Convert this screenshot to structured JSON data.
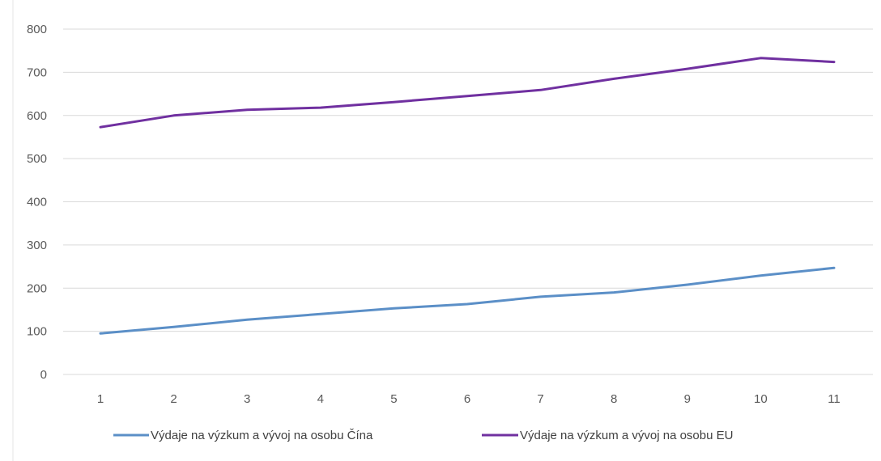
{
  "chart_data": {
    "type": "line",
    "title": "",
    "xlabel": "",
    "ylabel": "",
    "categories": [
      "1",
      "2",
      "3",
      "4",
      "5",
      "6",
      "7",
      "8",
      "9",
      "10",
      "11"
    ],
    "ylim": [
      0,
      800
    ],
    "yticks": [
      "0",
      "100",
      "200",
      "300",
      "400",
      "500",
      "600",
      "700",
      "800"
    ],
    "grid": true,
    "legend_position": "bottom",
    "series": [
      {
        "name": "Výdaje na výzkum a vývoj na osobu Čína",
        "color": "#5b8fc7",
        "values": [
          95,
          110,
          127,
          140,
          153,
          163,
          180,
          190,
          208,
          229,
          247
        ]
      },
      {
        "name": "Výdaje na výzkum a vývoj na osobu EU",
        "color": "#7030a0",
        "values": [
          573,
          600,
          613,
          618,
          631,
          645,
          659,
          685,
          708,
          733,
          724
        ]
      }
    ]
  }
}
